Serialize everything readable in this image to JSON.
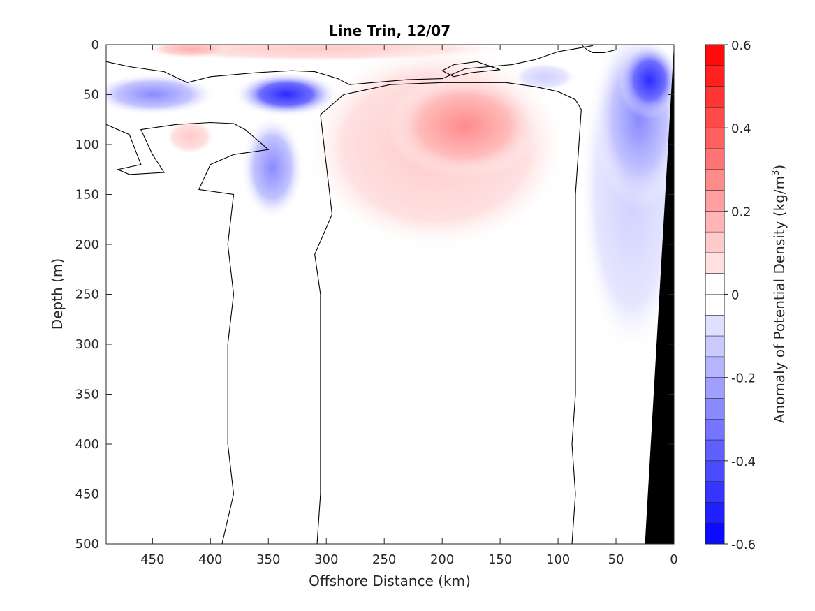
{
  "chart_data": {
    "type": "heatmap",
    "title": "Line Trin, 12/07",
    "xlabel": "Offshore Distance (km)",
    "ylabel": "Depth (m)",
    "colorbar_label": "Anomaly of Potential Density (kg/m",
    "colorbar_label_superscript": "3",
    "colorbar_label_close": ")",
    "xlim": [
      490,
      0
    ],
    "ylim": [
      0,
      500
    ],
    "clim": [
      -0.6,
      0.6
    ],
    "x_ticks": [
      450,
      400,
      350,
      300,
      250,
      200,
      150,
      100,
      50,
      0
    ],
    "y_ticks": [
      0,
      50,
      100,
      150,
      200,
      250,
      300,
      350,
      400,
      450,
      500
    ],
    "colorbar_ticks": [
      "0.6",
      "0.4",
      "0.2",
      "0",
      "-0.2",
      "-0.4",
      "-0.6"
    ],
    "colorbar_tick_values": [
      0.6,
      0.4,
      0.2,
      0,
      -0.2,
      -0.4,
      -0.6
    ],
    "contour_interval": 0.05,
    "colormap": {
      "negative": "#0000ff",
      "zero": "#ffffff",
      "positive": "#ff0000"
    },
    "bathymetry_color": "#000000",
    "zero_contour_color": "#000000",
    "bathymetry": [
      [
        0,
        0
      ],
      [
        25,
        500
      ],
      [
        0,
        500
      ]
    ],
    "anomaly_features": [
      {
        "sign": "positive",
        "label": "surface band",
        "x": [
          180,
          460
        ],
        "depth": [
          0,
          15
        ],
        "peak": 0.1
      },
      {
        "sign": "positive",
        "label": "subsurface lens core",
        "x": 175,
        "depth": 80,
        "peak": 0.25
      },
      {
        "sign": "positive",
        "label": "subsurface lens extent",
        "x": [
          100,
          300
        ],
        "depth": [
          35,
          240
        ],
        "peak": 0.15
      },
      {
        "sign": "positive",
        "label": "small patch",
        "x": 415,
        "depth": 95,
        "peak": 0.08
      },
      {
        "sign": "negative",
        "label": "offshore band",
        "x": [
          320,
          490
        ],
        "depth": [
          30,
          70
        ],
        "peak": -0.3
      },
      {
        "sign": "negative",
        "label": "core",
        "x": 345,
        "depth": 50,
        "peak": -0.35
      },
      {
        "sign": "negative",
        "label": "descending tongue",
        "x": 345,
        "depth": [
          90,
          175
        ],
        "peak": -0.2
      },
      {
        "sign": "negative",
        "label": "near-shore core",
        "x": 15,
        "depth": 35,
        "peak": -0.55
      },
      {
        "sign": "negative",
        "label": "near-shore extent",
        "x": [
          0,
          85
        ],
        "depth": [
          10,
          330
        ],
        "peak": -0.3
      }
    ],
    "zero_contours": [
      [
        [
          490,
          17
        ],
        [
          470,
          22
        ],
        [
          440,
          27
        ],
        [
          420,
          38
        ],
        [
          400,
          32
        ],
        [
          380,
          30
        ],
        [
          360,
          28
        ],
        [
          330,
          26
        ],
        [
          310,
          27
        ],
        [
          290,
          34
        ],
        [
          280,
          40
        ],
        [
          260,
          38
        ],
        [
          230,
          35
        ],
        [
          200,
          34
        ],
        [
          180,
          24
        ],
        [
          160,
          22
        ],
        [
          140,
          20
        ],
        [
          120,
          15
        ],
        [
          100,
          7
        ],
        [
          90,
          5
        ],
        [
          80,
          3
        ],
        [
          70,
          1
        ]
      ],
      [
        [
          490,
          80
        ],
        [
          470,
          90
        ],
        [
          460,
          120
        ],
        [
          480,
          125
        ],
        [
          470,
          130
        ],
        [
          440,
          128
        ],
        [
          450,
          110
        ],
        [
          460,
          85
        ],
        [
          430,
          80
        ],
        [
          400,
          78
        ],
        [
          380,
          79
        ],
        [
          370,
          85
        ],
        [
          350,
          105
        ],
        [
          380,
          110
        ],
        [
          400,
          120
        ],
        [
          410,
          145
        ],
        [
          380,
          150
        ],
        [
          385,
          200
        ],
        [
          380,
          250
        ],
        [
          385,
          300
        ],
        [
          385,
          350
        ],
        [
          385,
          400
        ],
        [
          380,
          450
        ],
        [
          390,
          500
        ]
      ],
      [
        [
          308,
          500
        ],
        [
          305,
          450
        ],
        [
          305,
          400
        ],
        [
          305,
          350
        ],
        [
          305,
          300
        ],
        [
          305,
          250
        ],
        [
          310,
          210
        ],
        [
          295,
          170
        ],
        [
          300,
          120
        ],
        [
          305,
          70
        ],
        [
          285,
          50
        ],
        [
          245,
          40
        ],
        [
          200,
          38
        ],
        [
          145,
          38
        ],
        [
          120,
          42
        ],
        [
          100,
          47
        ],
        [
          85,
          55
        ],
        [
          80,
          65
        ],
        [
          82,
          100
        ],
        [
          85,
          150
        ],
        [
          85,
          200
        ],
        [
          85,
          250
        ],
        [
          85,
          300
        ],
        [
          85,
          350
        ],
        [
          88,
          400
        ],
        [
          85,
          450
        ],
        [
          88,
          500
        ]
      ],
      [
        [
          150,
          25
        ],
        [
          175,
          28
        ],
        [
          190,
          32
        ],
        [
          200,
          26
        ],
        [
          190,
          20
        ],
        [
          170,
          17
        ],
        [
          150,
          25
        ]
      ],
      [
        [
          80,
          0
        ],
        [
          75,
          5
        ],
        [
          70,
          8
        ],
        [
          60,
          8
        ],
        [
          50,
          5
        ]
      ]
    ]
  }
}
